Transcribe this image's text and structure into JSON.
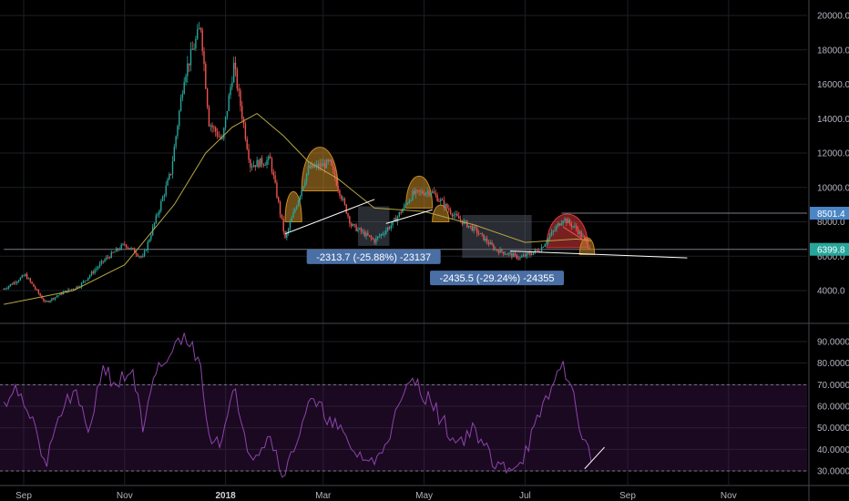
{
  "chart_data": [
    {
      "type": "candlestick",
      "title": "",
      "x_tick_labels": [
        "Sep",
        "Nov",
        "2018",
        "Mar",
        "May",
        "Jul",
        "Sep",
        "Nov"
      ],
      "x_tick_dates": [
        "2017-09-01",
        "2017-11-01",
        "2018-01-01",
        "2018-03-01",
        "2018-05-01",
        "2018-07-01",
        "2018-09-01",
        "2018-11-01"
      ],
      "y_tick_labels": [
        "20000.0",
        "18000.0",
        "16000.0",
        "14000.0",
        "12000.0",
        "10000.0",
        "8000.0",
        "6000.0",
        "4000.0"
      ],
      "y_ticks": [
        20000,
        18000,
        16000,
        14000,
        12000,
        10000,
        8000,
        6000,
        4000
      ],
      "price_labels": [
        {
          "text": "8501.4",
          "value": 8501.4,
          "color": "#4a86c5"
        },
        {
          "text": "6399.8",
          "value": 6399.8,
          "color": "#26a69a"
        }
      ],
      "price_series": [
        {
          "date": "2017-08-20",
          "price": 4100
        },
        {
          "date": "2017-09-02",
          "price": 4900
        },
        {
          "date": "2017-09-14",
          "price": 3300
        },
        {
          "date": "2017-09-25",
          "price": 3900
        },
        {
          "date": "2017-10-05",
          "price": 4300
        },
        {
          "date": "2017-10-20",
          "price": 5800
        },
        {
          "date": "2017-11-01",
          "price": 6700
        },
        {
          "date": "2017-11-12",
          "price": 5900
        },
        {
          "date": "2017-11-20",
          "price": 8200
        },
        {
          "date": "2017-11-29",
          "price": 10900
        },
        {
          "date": "2017-12-07",
          "price": 16500
        },
        {
          "date": "2017-12-17",
          "price": 19400
        },
        {
          "date": "2017-12-22",
          "price": 13800
        },
        {
          "date": "2017-12-30",
          "price": 12700
        },
        {
          "date": "2018-01-06",
          "price": 17100
        },
        {
          "date": "2018-01-16",
          "price": 11300
        },
        {
          "date": "2018-01-28",
          "price": 11600
        },
        {
          "date": "2018-02-06",
          "price": 7000
        },
        {
          "date": "2018-02-20",
          "price": 11100
        },
        {
          "date": "2018-03-05",
          "price": 11400
        },
        {
          "date": "2018-03-18",
          "price": 7800
        },
        {
          "date": "2018-04-01",
          "price": 6900
        },
        {
          "date": "2018-04-12",
          "price": 7900
        },
        {
          "date": "2018-04-24",
          "price": 9600
        },
        {
          "date": "2018-05-05",
          "price": 9800
        },
        {
          "date": "2018-05-20",
          "price": 8300
        },
        {
          "date": "2018-06-01",
          "price": 7500
        },
        {
          "date": "2018-06-13",
          "price": 6400
        },
        {
          "date": "2018-06-28",
          "price": 5900
        },
        {
          "date": "2018-07-10",
          "price": 6400
        },
        {
          "date": "2018-07-24",
          "price": 8200
        },
        {
          "date": "2018-08-01",
          "price": 7600
        },
        {
          "date": "2018-08-10",
          "price": 6400
        }
      ],
      "moving_average": [
        {
          "date": "2017-08-20",
          "price": 3200
        },
        {
          "date": "2017-10-01",
          "price": 4000
        },
        {
          "date": "2017-11-01",
          "price": 5500
        },
        {
          "date": "2017-12-01",
          "price": 9000
        },
        {
          "date": "2017-12-20",
          "price": 12000
        },
        {
          "date": "2018-01-05",
          "price": 13500
        },
        {
          "date": "2018-01-20",
          "price": 14300
        },
        {
          "date": "2018-02-05",
          "price": 13000
        },
        {
          "date": "2018-02-20",
          "price": 11500
        },
        {
          "date": "2018-03-10",
          "price": 10500
        },
        {
          "date": "2018-04-01",
          "price": 8800
        },
        {
          "date": "2018-05-01",
          "price": 8600
        },
        {
          "date": "2018-06-01",
          "price": 7800
        },
        {
          "date": "2018-07-01",
          "price": 6800
        },
        {
          "date": "2018-08-01",
          "price": 7000
        },
        {
          "date": "2018-08-10",
          "price": 6900
        }
      ],
      "trendlines": [
        {
          "from": {
            "date": "2018-02-06",
            "price": 7300
          },
          "to": {
            "date": "2018-04-01",
            "price": 9300
          },
          "color": "#ffffff"
        },
        {
          "from": {
            "date": "2018-04-08",
            "price": 7900
          },
          "to": {
            "date": "2018-05-06",
            "price": 8700
          },
          "color": "#ffffff"
        },
        {
          "from": {
            "date": "2018-06-22",
            "price": 6300
          },
          "to": {
            "date": "2018-10-07",
            "price": 5900
          },
          "color": "#ffffff"
        },
        {
          "from": {
            "date": "2018-07-24",
            "price": 7700
          },
          "to": {
            "date": "2018-08-06",
            "price": 6900
          },
          "color": "#ff5252"
        }
      ],
      "horizontal_lines": [
        {
          "price": 8501.4,
          "from_date": "2018-07-23",
          "color": "#787b86"
        },
        {
          "price": 6399.8,
          "from_date": "2017-08-20",
          "color": "#787b86"
        }
      ],
      "arc_highlights": [
        {
          "from": "2018-02-16",
          "to": "2018-03-10",
          "base": 9800,
          "peak": 12400,
          "color": "#c78a26"
        },
        {
          "from": "2018-02-06",
          "to": "2018-02-16",
          "base": 8000,
          "peak": 9800,
          "color": "#c78a26"
        },
        {
          "from": "2018-04-20",
          "to": "2018-05-06",
          "base": 8800,
          "peak": 10700,
          "color": "#c78a26"
        },
        {
          "from": "2018-05-06",
          "to": "2018-05-16",
          "base": 8000,
          "peak": 9000,
          "color": "#c78a26"
        },
        {
          "from": "2018-07-14",
          "to": "2018-08-08",
          "base": 6500,
          "peak": 8500,
          "color": "#d93a3a"
        },
        {
          "from": "2018-08-03",
          "to": "2018-08-12",
          "base": 6100,
          "peak": 7100,
          "color": "#c78a26"
        }
      ],
      "measure_boxes": [
        {
          "from_date": "2018-03-22",
          "to_date": "2018-04-10",
          "from_price": 8900,
          "to_price": 6600,
          "label": "-2313.7 (-25.88%) -23137"
        },
        {
          "from_date": "2018-05-24",
          "to_date": "2018-07-05",
          "from_price": 8400,
          "to_price": 5900,
          "label": "-2435.5 (-29.24%) -24355"
        }
      ],
      "colors": {
        "up": "#26a69a",
        "down": "#ef5350",
        "ma": "#b5a642",
        "grid": "#1c1f26"
      }
    },
    {
      "type": "line",
      "title": "",
      "ylim": [
        25,
        97
      ],
      "y_tick_labels": [
        "90.0000",
        "80.0000",
        "70.0000",
        "60.0000",
        "50.0000",
        "40.0000",
        "30.0000"
      ],
      "y_ticks": [
        90,
        80,
        70,
        60,
        50,
        40,
        30
      ],
      "band": [
        30,
        70
      ],
      "series": [
        {
          "color": "#8e44ad",
          "points": [
            {
              "date": "2017-08-20",
              "value": 62
            },
            {
              "date": "2017-08-27",
              "value": 70
            },
            {
              "date": "2017-09-03",
              "value": 58
            },
            {
              "date": "2017-09-10",
              "value": 44
            },
            {
              "date": "2017-09-15",
              "value": 32
            },
            {
              "date": "2017-09-22",
              "value": 55
            },
            {
              "date": "2017-10-01",
              "value": 67
            },
            {
              "date": "2017-10-10",
              "value": 48
            },
            {
              "date": "2017-10-19",
              "value": 79
            },
            {
              "date": "2017-10-27",
              "value": 70
            },
            {
              "date": "2017-11-06",
              "value": 77
            },
            {
              "date": "2017-11-12",
              "value": 48
            },
            {
              "date": "2017-11-20",
              "value": 75
            },
            {
              "date": "2017-11-28",
              "value": 83
            },
            {
              "date": "2017-12-07",
              "value": 94
            },
            {
              "date": "2017-12-17",
              "value": 79
            },
            {
              "date": "2017-12-22",
              "value": 47
            },
            {
              "date": "2017-12-30",
              "value": 45
            },
            {
              "date": "2018-01-07",
              "value": 68
            },
            {
              "date": "2018-01-16",
              "value": 37
            },
            {
              "date": "2018-01-28",
              "value": 46
            },
            {
              "date": "2018-02-06",
              "value": 28
            },
            {
              "date": "2018-02-20",
              "value": 62
            },
            {
              "date": "2018-03-05",
              "value": 55
            },
            {
              "date": "2018-03-18",
              "value": 40
            },
            {
              "date": "2018-04-01",
              "value": 33
            },
            {
              "date": "2018-04-12",
              "value": 52
            },
            {
              "date": "2018-04-24",
              "value": 73
            },
            {
              "date": "2018-05-05",
              "value": 62
            },
            {
              "date": "2018-05-20",
              "value": 43
            },
            {
              "date": "2018-06-01",
              "value": 50
            },
            {
              "date": "2018-06-13",
              "value": 31
            },
            {
              "date": "2018-06-28",
              "value": 34
            },
            {
              "date": "2018-07-10",
              "value": 55
            },
            {
              "date": "2018-07-24",
              "value": 81
            },
            {
              "date": "2018-08-01",
              "value": 58
            },
            {
              "date": "2018-08-10",
              "value": 34
            }
          ]
        }
      ],
      "trendlines": [
        {
          "from": {
            "date": "2018-08-06",
            "value": 31
          },
          "to": {
            "date": "2018-08-18",
            "value": 41
          },
          "color": "#ffffff"
        }
      ]
    }
  ]
}
